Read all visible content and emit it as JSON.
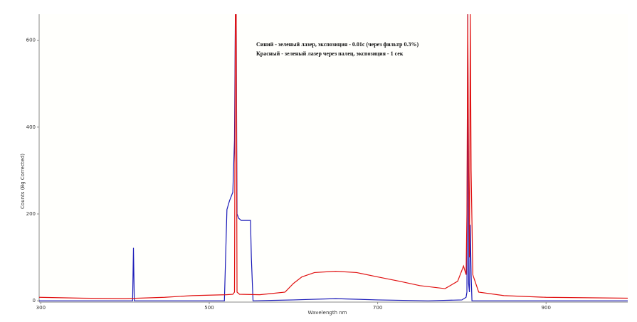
{
  "chart_data": {
    "type": "line",
    "x_label": "Wavelength nm",
    "y_label": "Counts (Bg Corrected)",
    "annotations": [
      "Синий - зеленый лазер, экспозиция - 0.01с (через фильтр 0.3%)",
      "Красный - зеленый лазер через палец, экспозиция - 1 сек"
    ],
    "xlim": [
      298,
      997
    ],
    "ylim": [
      -3,
      660
    ],
    "xticks": [
      300,
      500,
      700,
      900
    ],
    "yticks": [
      0,
      200,
      400,
      600
    ],
    "series": [
      {
        "name": "Синий",
        "color": "#1a1ab8",
        "x": [
          298,
          405,
          409,
          410,
          411,
          413,
          518,
          521,
          524,
          528,
          530,
          531,
          532,
          533,
          535,
          538,
          545,
          549,
          550,
          552,
          600,
          650,
          700,
          760,
          800,
          805,
          806,
          807,
          808,
          809,
          810,
          811,
          812,
          815,
          997
        ],
        "values": [
          0,
          0,
          0,
          122,
          0,
          0,
          0,
          210,
          230,
          250,
          370,
          660,
          660,
          200,
          190,
          185,
          185,
          185,
          100,
          0,
          2,
          5,
          2,
          0,
          2,
          8,
          20,
          660,
          40,
          20,
          175,
          60,
          0,
          0,
          0
        ]
      },
      {
        "name": "Красный",
        "color": "#e01010",
        "x": [
          298,
          350,
          400,
          447,
          480,
          520,
          528,
          530,
          531,
          532,
          533,
          536,
          560,
          590,
          600,
          610,
          625,
          650,
          675,
          700,
          726,
          750,
          780,
          795,
          802,
          805,
          806,
          807,
          808,
          809,
          810,
          811,
          813,
          820,
          850,
          900,
          997
        ],
        "values": [
          8,
          6,
          5,
          8,
          12,
          14,
          15,
          20,
          660,
          660,
          20,
          15,
          14,
          20,
          40,
          55,
          65,
          68,
          65,
          55,
          45,
          35,
          28,
          45,
          80,
          60,
          200,
          660,
          300,
          100,
          660,
          300,
          60,
          20,
          12,
          8,
          6
        ]
      }
    ]
  }
}
